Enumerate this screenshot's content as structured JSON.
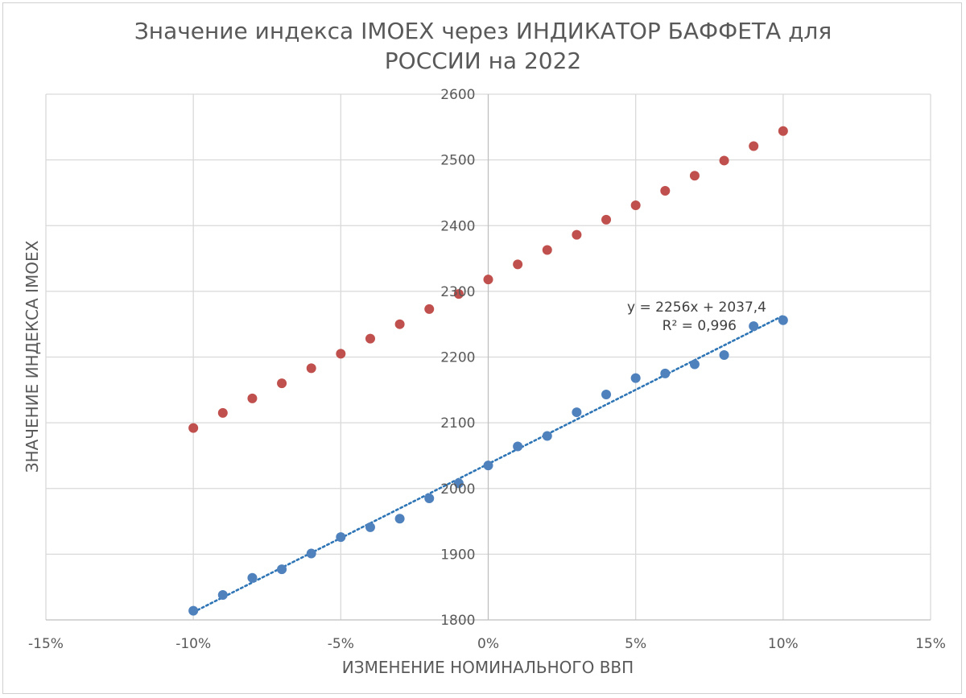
{
  "chart_data": {
    "type": "scatter",
    "title_lines": [
      "Значение индекса IMOEX через ИНДИКАТОР БАФФЕТА для",
      "РОССИИ на 2022"
    ],
    "xlabel": "ИЗМЕНЕНИЕ НОМИНАЛЬНОГО ВВП",
    "ylabel": "ЗНАЧЕНИЕ ИНДЕКСА IMOEX",
    "xlim": [
      -0.15,
      0.15
    ],
    "ylim": [
      1800,
      2600
    ],
    "x_ticks": [
      -0.15,
      -0.1,
      -0.05,
      0,
      0.05,
      0.1,
      0.15
    ],
    "x_tick_labels": [
      "-15%",
      "-10%",
      "-5%",
      "0%",
      "5%",
      "10%",
      "15%"
    ],
    "y_ticks": [
      1800,
      1900,
      2000,
      2100,
      2200,
      2300,
      2400,
      2500,
      2600
    ],
    "y_tick_labels": [
      "1800",
      "1900",
      "2000",
      "2100",
      "2200",
      "2300",
      "2400",
      "2500",
      "2600"
    ],
    "grid": true,
    "legend": "none",
    "series": [
      {
        "color": "#c0504d",
        "x": [
          -0.1,
          -0.09,
          -0.08,
          -0.07,
          -0.06,
          -0.05,
          -0.04,
          -0.03,
          -0.02,
          -0.01,
          0.0,
          0.01,
          0.02,
          0.03,
          0.04,
          0.05,
          0.06,
          0.07,
          0.08,
          0.09,
          0.1
        ],
        "y": [
          2092,
          2115,
          2137,
          2160,
          2183,
          2205,
          2228,
          2250,
          2273,
          2296,
          2318,
          2341,
          2363,
          2386,
          2409,
          2431,
          2453,
          2476,
          2499,
          2521,
          2544
        ]
      },
      {
        "color": "#4f81bd",
        "x": [
          -0.1,
          -0.09,
          -0.08,
          -0.07,
          -0.06,
          -0.05,
          -0.04,
          -0.03,
          -0.02,
          -0.01,
          0.0,
          0.01,
          0.02,
          0.03,
          0.04,
          0.05,
          0.06,
          0.07,
          0.08,
          0.09,
          0.1
        ],
        "y": [
          1814,
          1838,
          1864,
          1877,
          1901,
          1926,
          1941,
          1954,
          1985,
          2008,
          2035,
          2064,
          2080,
          2116,
          2143,
          2168,
          2175,
          2189,
          2203,
          2247,
          2256
        ]
      }
    ],
    "trendline": {
      "color": "#2e75b6",
      "slope": 2256,
      "intercept": 2037.4,
      "x_range": [
        -0.1,
        0.1
      ],
      "equation": "y = 2256x + 2037,4",
      "r2": "R² = 0,996"
    }
  }
}
